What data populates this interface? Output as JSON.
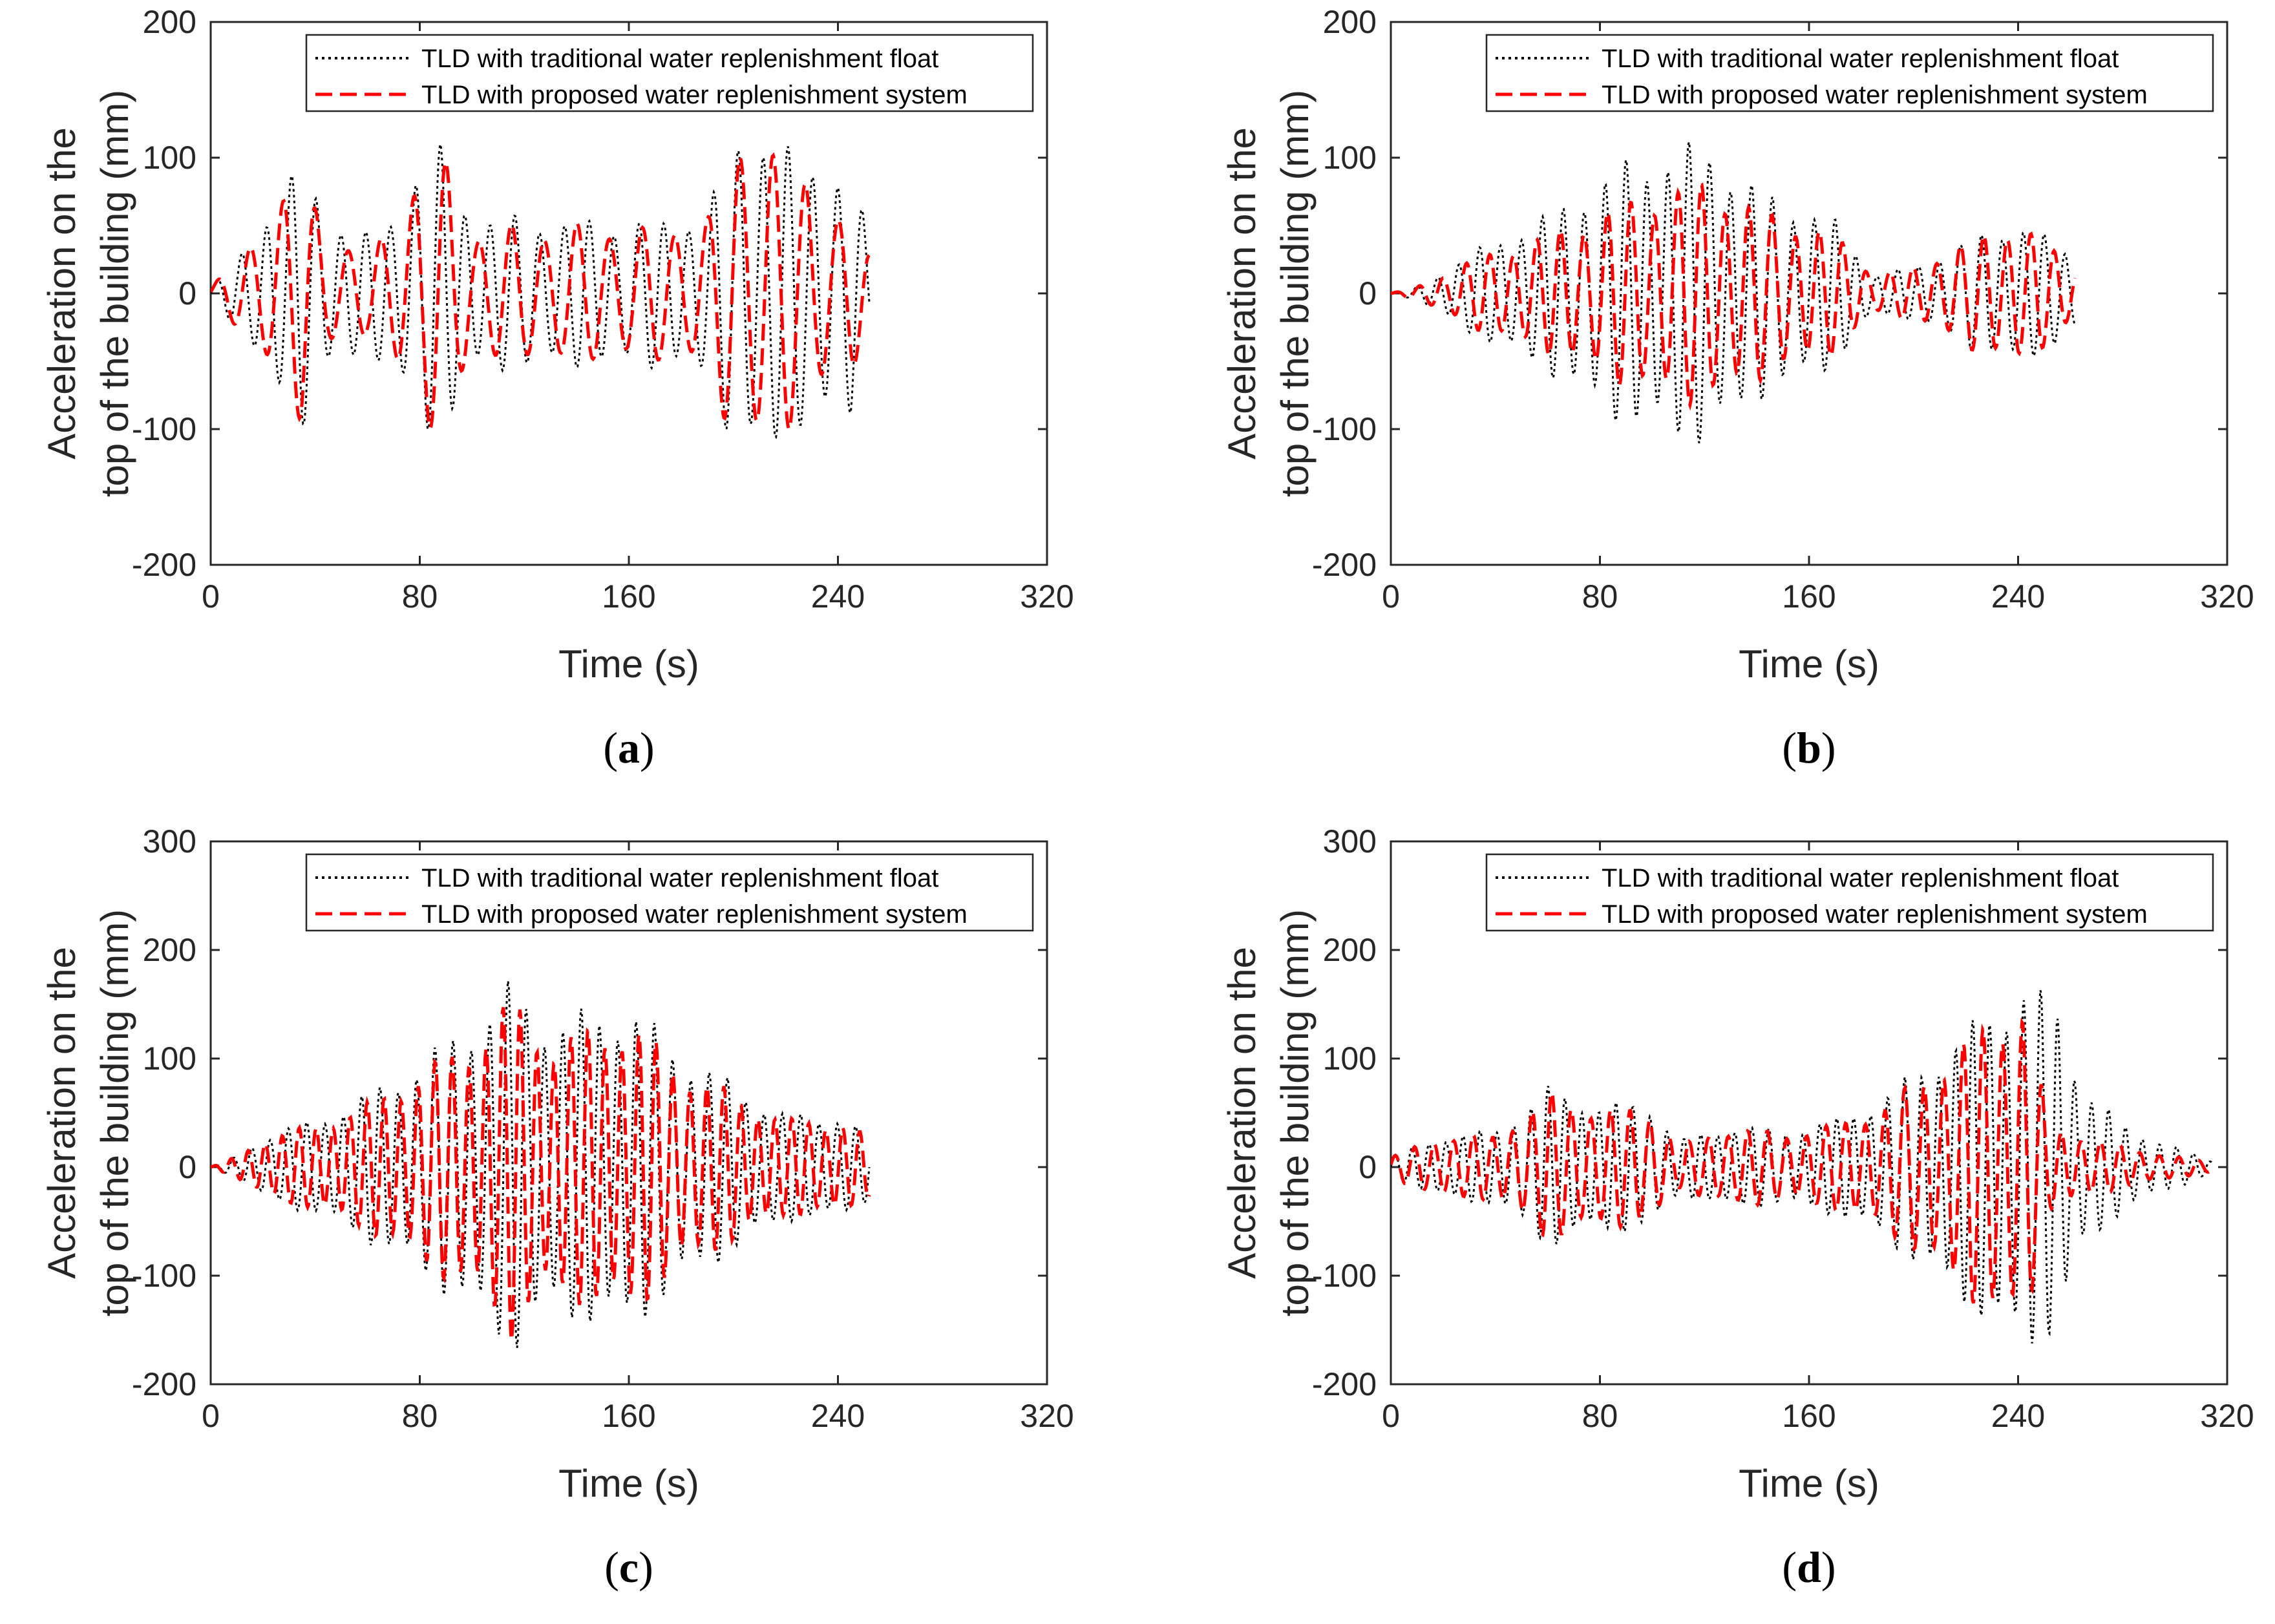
{
  "colors": {
    "traditional": "#000000",
    "proposed": "#ff0000",
    "axis": "#262626"
  },
  "chart_data": [
    {
      "panel": "(a)",
      "caption_letter": "a",
      "type": "line",
      "xlabel": "Time (s)",
      "ylabel_line1": "Acceleration on the",
      "ylabel_line2": "top of the building (mm)",
      "xlim": [
        0,
        320
      ],
      "ylim": [
        -200,
        200
      ],
      "xticks": [
        "0",
        "80",
        "160",
        "240",
        "320"
      ],
      "yticks": [
        "-200",
        "-100",
        "0",
        "100",
        "200"
      ],
      "legend_position": "top-right",
      "grid": false,
      "duration": 252,
      "series": [
        {
          "name": "TLD with traditional water replenishment float",
          "style": "dotted",
          "color": "#000000",
          "envelope": [
            [
              0,
              5
            ],
            [
              10,
              25
            ],
            [
              20,
              60
            ],
            [
              35,
              100
            ],
            [
              45,
              60
            ],
            [
              60,
              45
            ],
            [
              70,
              60
            ],
            [
              80,
              105
            ],
            [
              88,
              110
            ],
            [
              100,
              60
            ],
            [
              140,
              55
            ],
            [
              175,
              55
            ],
            [
              190,
              65
            ],
            [
              200,
              115
            ],
            [
              212,
              130
            ],
            [
              225,
              100
            ],
            [
              235,
              100
            ],
            [
              245,
              95
            ],
            [
              252,
              40
            ]
          ]
        },
        {
          "name": "TLD with proposed water replenishment system",
          "style": "dashed",
          "color": "#ff0000",
          "envelope": [
            [
              0,
              5
            ],
            [
              10,
              25
            ],
            [
              20,
              55
            ],
            [
              35,
              95
            ],
            [
              45,
              45
            ],
            [
              60,
              30
            ],
            [
              70,
              55
            ],
            [
              80,
              100
            ],
            [
              88,
              108
            ],
            [
              100,
              50
            ],
            [
              140,
              52
            ],
            [
              175,
              50
            ],
            [
              190,
              60
            ],
            [
              200,
              110
            ],
            [
              212,
              128
            ],
            [
              225,
              90
            ],
            [
              235,
              75
            ],
            [
              245,
              60
            ],
            [
              252,
              30
            ]
          ]
        }
      ]
    },
    {
      "panel": "(b)",
      "caption_letter": "b",
      "type": "line",
      "xlabel": "Time (s)",
      "ylabel_line1": "Acceleration on the",
      "ylabel_line2": "top of the building (mm)",
      "xlim": [
        0,
        320
      ],
      "ylim": [
        -200,
        200
      ],
      "xticks": [
        "0",
        "80",
        "160",
        "240",
        "320"
      ],
      "yticks": [
        "-200",
        "-100",
        "0",
        "100",
        "200"
      ],
      "legend_position": "top-right",
      "grid": false,
      "duration": 262,
      "series": [
        {
          "name": "TLD with traditional water replenishment float",
          "style": "dotted",
          "color": "#000000",
          "envelope": [
            [
              0,
              0
            ],
            [
              10,
              5
            ],
            [
              30,
              30
            ],
            [
              60,
              60
            ],
            [
              90,
              100
            ],
            [
              120,
              115
            ],
            [
              140,
              80
            ],
            [
              170,
              55
            ],
            [
              185,
              15
            ],
            [
              200,
              20
            ],
            [
              220,
              40
            ],
            [
              240,
              55
            ],
            [
              262,
              30
            ]
          ]
        },
        {
          "name": "TLD with proposed water replenishment system",
          "style": "dashed",
          "color": "#ff0000",
          "envelope": [
            [
              0,
              0
            ],
            [
              10,
              5
            ],
            [
              30,
              25
            ],
            [
              60,
              45
            ],
            [
              90,
              70
            ],
            [
              120,
              85
            ],
            [
              140,
              65
            ],
            [
              170,
              45
            ],
            [
              185,
              15
            ],
            [
              200,
              20
            ],
            [
              220,
              40
            ],
            [
              240,
              55
            ],
            [
              262,
              20
            ]
          ]
        }
      ]
    },
    {
      "panel": "(c)",
      "caption_letter": "c",
      "type": "line",
      "xlabel": "Time (s)",
      "ylabel_line1": "Acceleration on the",
      "ylabel_line2": "top of the building (mm)",
      "xlim": [
        0,
        320
      ],
      "ylim": [
        -200,
        300
      ],
      "xticks": [
        "0",
        "80",
        "160",
        "240",
        "320"
      ],
      "yticks": [
        "-200",
        "-100",
        "0",
        "100",
        "200",
        "300"
      ],
      "legend_position": "top-right",
      "grid": false,
      "duration": 252,
      "series": [
        {
          "name": "TLD with traditional water replenishment float",
          "style": "dotted",
          "color": "#000000",
          "envelope": [
            [
              0,
              0
            ],
            [
              10,
              10
            ],
            [
              20,
              30
            ],
            [
              40,
              45
            ],
            [
              60,
              70
            ],
            [
              80,
              100
            ],
            [
              100,
              140
            ],
            [
              115,
              175
            ],
            [
              130,
              140
            ],
            [
              160,
              155
            ],
            [
              180,
              110
            ],
            [
              200,
              80
            ],
            [
              220,
              50
            ],
            [
              240,
              50
            ],
            [
              252,
              30
            ]
          ]
        },
        {
          "name": "TLD with proposed water replenishment system",
          "style": "dashed",
          "color": "#ff0000",
          "envelope": [
            [
              0,
              0
            ],
            [
              10,
              10
            ],
            [
              20,
              28
            ],
            [
              40,
              40
            ],
            [
              60,
              60
            ],
            [
              80,
              90
            ],
            [
              100,
              120
            ],
            [
              115,
              160
            ],
            [
              130,
              120
            ],
            [
              160,
              140
            ],
            [
              180,
              95
            ],
            [
              200,
              70
            ],
            [
              220,
              45
            ],
            [
              240,
              45
            ],
            [
              252,
              28
            ]
          ]
        }
      ]
    },
    {
      "panel": "(d)",
      "caption_letter": "d",
      "type": "line",
      "xlabel": "Time (s)",
      "ylabel_line1": "Acceleration on the",
      "ylabel_line2": "top of the building (mm)",
      "xlim": [
        0,
        320
      ],
      "ylim": [
        -200,
        300
      ],
      "xticks": [
        "0",
        "80",
        "160",
        "240",
        "320"
      ],
      "yticks": [
        "-200",
        "-100",
        "0",
        "100",
        "200",
        "300"
      ],
      "legend_position": "top-right",
      "grid": false,
      "duration": 315,
      "series": [
        {
          "name": "TLD with traditional water replenishment float",
          "style": "dotted",
          "color": "#000000",
          "envelope": [
            [
              0,
              10
            ],
            [
              20,
              30
            ],
            [
              40,
              35
            ],
            [
              60,
              75
            ],
            [
              80,
              60
            ],
            [
              100,
              60
            ],
            [
              110,
              25
            ],
            [
              130,
              40
            ],
            [
              150,
              35
            ],
            [
              170,
              45
            ],
            [
              190,
              70
            ],
            [
              210,
              110
            ],
            [
              230,
              150
            ],
            [
              242,
              180
            ],
            [
              255,
              150
            ],
            [
              265,
              80
            ],
            [
              280,
              40
            ],
            [
              300,
              20
            ],
            [
              315,
              5
            ]
          ]
        },
        {
          "name": "TLD with proposed water replenishment system",
          "style": "dashed",
          "color": "#ff0000",
          "envelope": [
            [
              0,
              10
            ],
            [
              20,
              30
            ],
            [
              40,
              30
            ],
            [
              60,
              70
            ],
            [
              80,
              55
            ],
            [
              100,
              55
            ],
            [
              110,
              20
            ],
            [
              130,
              38
            ],
            [
              150,
              32
            ],
            [
              170,
              40
            ],
            [
              190,
              60
            ],
            [
              210,
              100
            ],
            [
              230,
              140
            ],
            [
              242,
              160
            ],
            [
              252,
              40
            ],
            [
              265,
              30
            ],
            [
              280,
              20
            ],
            [
              300,
              10
            ],
            [
              315,
              5
            ]
          ]
        }
      ]
    }
  ]
}
